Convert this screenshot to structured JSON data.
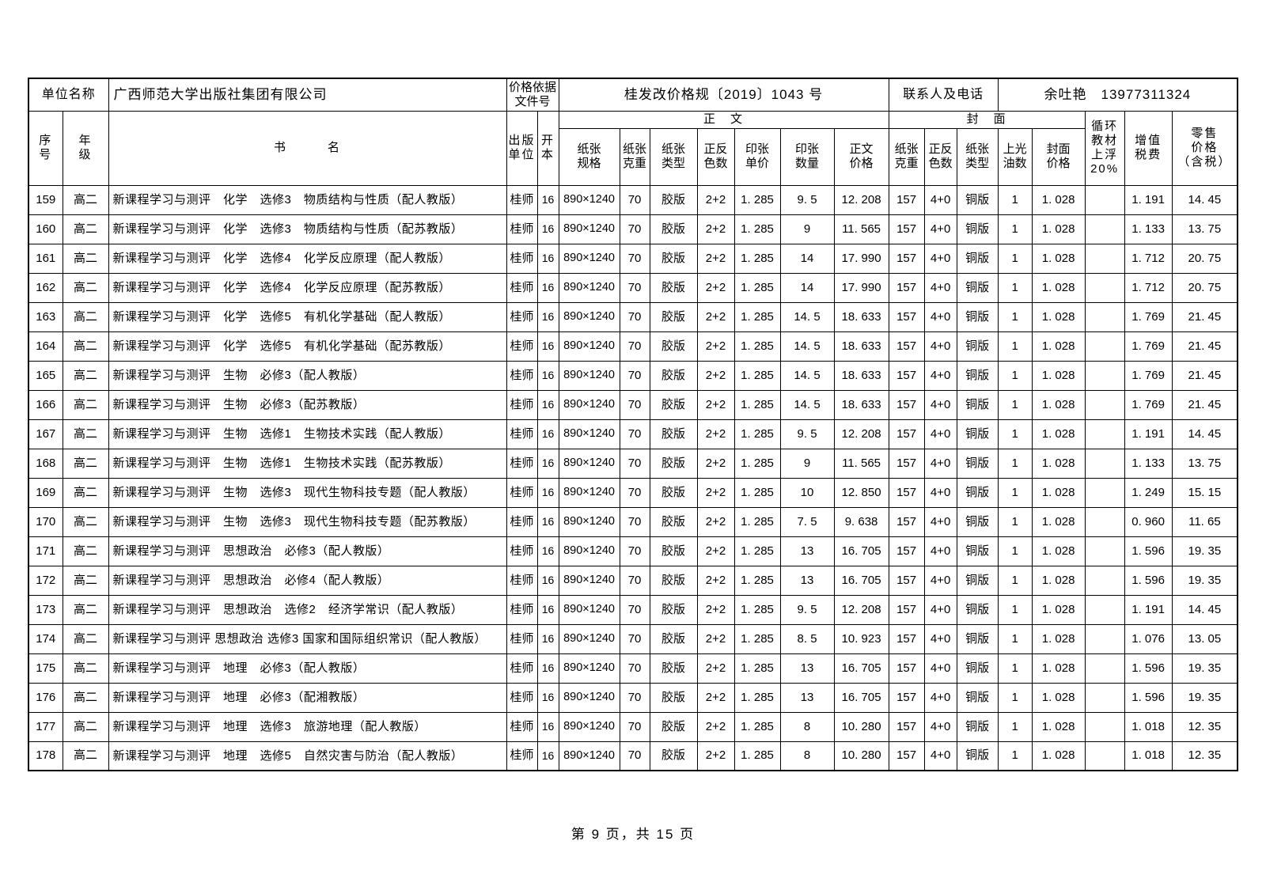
{
  "header": {
    "unit_label": "单位名称",
    "unit_name": "广西师范大学出版社集团有限公司",
    "price_doc_label": "价格依据\n文件号",
    "price_doc_value": "桂发改价格规〔2019〕1043 号",
    "contact_label": "联系人及电话",
    "contact_value": "余吐艳　13977311324"
  },
  "table": {
    "group_headers": {
      "body": "正　文",
      "cover": "封　面"
    },
    "columns": {
      "seq": "序\n号",
      "grade": "年\n级",
      "title": "书　　　名",
      "publisher": "出版\n单位",
      "format": "开\n本",
      "paper_spec": "纸张\n规格",
      "paper_weight": "纸张\n克重",
      "paper_type": "纸张\n类型",
      "colors": "正反\n色数",
      "sheet_unit_price": "印张\n单价",
      "sheet_count": "印张\n数量",
      "text_price": "正文\n价格",
      "cover_weight": "纸张\n克重",
      "cover_colors": "正反\n色数",
      "cover_type": "纸张\n类型",
      "varnish": "上光\n油数",
      "cover_price": "封面\n价格",
      "recycle": "循环\n教材\n上浮\n20%",
      "vat": "增值\n税费",
      "retail": "零售\n价格\n（含税）"
    },
    "rows": [
      {
        "seq": "159",
        "grade": "高二",
        "title": "新课程学习与测评　化学　选修3　物质结构与性质（配人教版）",
        "publisher": "桂师",
        "format": "16",
        "paper_spec": "890×1240",
        "paper_weight": "70",
        "paper_type": "胶版",
        "colors": "2+2",
        "sheet_unit_price": "1. 285",
        "sheet_count": "9. 5",
        "text_price": "12. 208",
        "cover_weight": "157",
        "cover_colors": "4+0",
        "cover_type": "铜版",
        "varnish": "1",
        "cover_price": "1. 028",
        "recycle": "",
        "vat": "1. 191",
        "retail": "14. 45"
      },
      {
        "seq": "160",
        "grade": "高二",
        "title": "新课程学习与测评　化学　选修3　物质结构与性质（配苏教版）",
        "publisher": "桂师",
        "format": "16",
        "paper_spec": "890×1240",
        "paper_weight": "70",
        "paper_type": "胶版",
        "colors": "2+2",
        "sheet_unit_price": "1. 285",
        "sheet_count": "9",
        "text_price": "11. 565",
        "cover_weight": "157",
        "cover_colors": "4+0",
        "cover_type": "铜版",
        "varnish": "1",
        "cover_price": "1. 028",
        "recycle": "",
        "vat": "1. 133",
        "retail": "13. 75"
      },
      {
        "seq": "161",
        "grade": "高二",
        "title": "新课程学习与测评　化学　选修4　化学反应原理（配人教版）",
        "publisher": "桂师",
        "format": "16",
        "paper_spec": "890×1240",
        "paper_weight": "70",
        "paper_type": "胶版",
        "colors": "2+2",
        "sheet_unit_price": "1. 285",
        "sheet_count": "14",
        "text_price": "17. 990",
        "cover_weight": "157",
        "cover_colors": "4+0",
        "cover_type": "铜版",
        "varnish": "1",
        "cover_price": "1. 028",
        "recycle": "",
        "vat": "1. 712",
        "retail": "20. 75"
      },
      {
        "seq": "162",
        "grade": "高二",
        "title": "新课程学习与测评　化学　选修4　化学反应原理（配苏教版）",
        "publisher": "桂师",
        "format": "16",
        "paper_spec": "890×1240",
        "paper_weight": "70",
        "paper_type": "胶版",
        "colors": "2+2",
        "sheet_unit_price": "1. 285",
        "sheet_count": "14",
        "text_price": "17. 990",
        "cover_weight": "157",
        "cover_colors": "4+0",
        "cover_type": "铜版",
        "varnish": "1",
        "cover_price": "1. 028",
        "recycle": "",
        "vat": "1. 712",
        "retail": "20. 75"
      },
      {
        "seq": "163",
        "grade": "高二",
        "title": "新课程学习与测评　化学　选修5　有机化学基础（配人教版）",
        "publisher": "桂师",
        "format": "16",
        "paper_spec": "890×1240",
        "paper_weight": "70",
        "paper_type": "胶版",
        "colors": "2+2",
        "sheet_unit_price": "1. 285",
        "sheet_count": "14. 5",
        "text_price": "18. 633",
        "cover_weight": "157",
        "cover_colors": "4+0",
        "cover_type": "铜版",
        "varnish": "1",
        "cover_price": "1. 028",
        "recycle": "",
        "vat": "1. 769",
        "retail": "21. 45"
      },
      {
        "seq": "164",
        "grade": "高二",
        "title": "新课程学习与测评　化学　选修5　有机化学基础（配苏教版）",
        "publisher": "桂师",
        "format": "16",
        "paper_spec": "890×1240",
        "paper_weight": "70",
        "paper_type": "胶版",
        "colors": "2+2",
        "sheet_unit_price": "1. 285",
        "sheet_count": "14. 5",
        "text_price": "18. 633",
        "cover_weight": "157",
        "cover_colors": "4+0",
        "cover_type": "铜版",
        "varnish": "1",
        "cover_price": "1. 028",
        "recycle": "",
        "vat": "1. 769",
        "retail": "21. 45"
      },
      {
        "seq": "165",
        "grade": "高二",
        "title": "新课程学习与测评　生物　必修3（配人教版）",
        "publisher": "桂师",
        "format": "16",
        "paper_spec": "890×1240",
        "paper_weight": "70",
        "paper_type": "胶版",
        "colors": "2+2",
        "sheet_unit_price": "1. 285",
        "sheet_count": "14. 5",
        "text_price": "18. 633",
        "cover_weight": "157",
        "cover_colors": "4+0",
        "cover_type": "铜版",
        "varnish": "1",
        "cover_price": "1. 028",
        "recycle": "",
        "vat": "1. 769",
        "retail": "21. 45"
      },
      {
        "seq": "166",
        "grade": "高二",
        "title": "新课程学习与测评　生物　必修3（配苏教版）",
        "publisher": "桂师",
        "format": "16",
        "paper_spec": "890×1240",
        "paper_weight": "70",
        "paper_type": "胶版",
        "colors": "2+2",
        "sheet_unit_price": "1. 285",
        "sheet_count": "14. 5",
        "text_price": "18. 633",
        "cover_weight": "157",
        "cover_colors": "4+0",
        "cover_type": "铜版",
        "varnish": "1",
        "cover_price": "1. 028",
        "recycle": "",
        "vat": "1. 769",
        "retail": "21. 45"
      },
      {
        "seq": "167",
        "grade": "高二",
        "title": "新课程学习与测评　生物　选修1　生物技术实践（配人教版）",
        "publisher": "桂师",
        "format": "16",
        "paper_spec": "890×1240",
        "paper_weight": "70",
        "paper_type": "胶版",
        "colors": "2+2",
        "sheet_unit_price": "1. 285",
        "sheet_count": "9. 5",
        "text_price": "12. 208",
        "cover_weight": "157",
        "cover_colors": "4+0",
        "cover_type": "铜版",
        "varnish": "1",
        "cover_price": "1. 028",
        "recycle": "",
        "vat": "1. 191",
        "retail": "14. 45"
      },
      {
        "seq": "168",
        "grade": "高二",
        "title": "新课程学习与测评　生物　选修1　生物技术实践（配苏教版）",
        "publisher": "桂师",
        "format": "16",
        "paper_spec": "890×1240",
        "paper_weight": "70",
        "paper_type": "胶版",
        "colors": "2+2",
        "sheet_unit_price": "1. 285",
        "sheet_count": "9",
        "text_price": "11. 565",
        "cover_weight": "157",
        "cover_colors": "4+0",
        "cover_type": "铜版",
        "varnish": "1",
        "cover_price": "1. 028",
        "recycle": "",
        "vat": "1. 133",
        "retail": "13. 75"
      },
      {
        "seq": "169",
        "grade": "高二",
        "title": "新课程学习与测评　生物　选修3　现代生物科技专题（配人教版）",
        "publisher": "桂师",
        "format": "16",
        "paper_spec": "890×1240",
        "paper_weight": "70",
        "paper_type": "胶版",
        "colors": "2+2",
        "sheet_unit_price": "1. 285",
        "sheet_count": "10",
        "text_price": "12. 850",
        "cover_weight": "157",
        "cover_colors": "4+0",
        "cover_type": "铜版",
        "varnish": "1",
        "cover_price": "1. 028",
        "recycle": "",
        "vat": "1. 249",
        "retail": "15. 15"
      },
      {
        "seq": "170",
        "grade": "高二",
        "title": "新课程学习与测评　生物　选修3　现代生物科技专题（配苏教版）",
        "publisher": "桂师",
        "format": "16",
        "paper_spec": "890×1240",
        "paper_weight": "70",
        "paper_type": "胶版",
        "colors": "2+2",
        "sheet_unit_price": "1. 285",
        "sheet_count": "7. 5",
        "text_price": "9. 638",
        "cover_weight": "157",
        "cover_colors": "4+0",
        "cover_type": "铜版",
        "varnish": "1",
        "cover_price": "1. 028",
        "recycle": "",
        "vat": "0. 960",
        "retail": "11. 65"
      },
      {
        "seq": "171",
        "grade": "高二",
        "title": "新课程学习与测评　思想政治　必修3（配人教版）",
        "publisher": "桂师",
        "format": "16",
        "paper_spec": "890×1240",
        "paper_weight": "70",
        "paper_type": "胶版",
        "colors": "2+2",
        "sheet_unit_price": "1. 285",
        "sheet_count": "13",
        "text_price": "16. 705",
        "cover_weight": "157",
        "cover_colors": "4+0",
        "cover_type": "铜版",
        "varnish": "1",
        "cover_price": "1. 028",
        "recycle": "",
        "vat": "1. 596",
        "retail": "19. 35"
      },
      {
        "seq": "172",
        "grade": "高二",
        "title": "新课程学习与测评　思想政治　必修4（配人教版）",
        "publisher": "桂师",
        "format": "16",
        "paper_spec": "890×1240",
        "paper_weight": "70",
        "paper_type": "胶版",
        "colors": "2+2",
        "sheet_unit_price": "1. 285",
        "sheet_count": "13",
        "text_price": "16. 705",
        "cover_weight": "157",
        "cover_colors": "4+0",
        "cover_type": "铜版",
        "varnish": "1",
        "cover_price": "1. 028",
        "recycle": "",
        "vat": "1. 596",
        "retail": "19. 35"
      },
      {
        "seq": "173",
        "grade": "高二",
        "title": "新课程学习与测评　思想政治　选修2　经济学常识（配人教版）",
        "publisher": "桂师",
        "format": "16",
        "paper_spec": "890×1240",
        "paper_weight": "70",
        "paper_type": "胶版",
        "colors": "2+2",
        "sheet_unit_price": "1. 285",
        "sheet_count": "9. 5",
        "text_price": "12. 208",
        "cover_weight": "157",
        "cover_colors": "4+0",
        "cover_type": "铜版",
        "varnish": "1",
        "cover_price": "1. 028",
        "recycle": "",
        "vat": "1. 191",
        "retail": "14. 45"
      },
      {
        "seq": "174",
        "grade": "高二",
        "title": "新课程学习与测评 思想政治 选修3 国家和国际组织常识（配人教版）",
        "publisher": "桂师",
        "format": "16",
        "paper_spec": "890×1240",
        "paper_weight": "70",
        "paper_type": "胶版",
        "colors": "2+2",
        "sheet_unit_price": "1. 285",
        "sheet_count": "8. 5",
        "text_price": "10. 923",
        "cover_weight": "157",
        "cover_colors": "4+0",
        "cover_type": "铜版",
        "varnish": "1",
        "cover_price": "1. 028",
        "recycle": "",
        "vat": "1. 076",
        "retail": "13. 05"
      },
      {
        "seq": "175",
        "grade": "高二",
        "title": "新课程学习与测评　地理　必修3（配人教版）",
        "publisher": "桂师",
        "format": "16",
        "paper_spec": "890×1240",
        "paper_weight": "70",
        "paper_type": "胶版",
        "colors": "2+2",
        "sheet_unit_price": "1. 285",
        "sheet_count": "13",
        "text_price": "16. 705",
        "cover_weight": "157",
        "cover_colors": "4+0",
        "cover_type": "铜版",
        "varnish": "1",
        "cover_price": "1. 028",
        "recycle": "",
        "vat": "1. 596",
        "retail": "19. 35"
      },
      {
        "seq": "176",
        "grade": "高二",
        "title": "新课程学习与测评　地理　必修3（配湘教版）",
        "publisher": "桂师",
        "format": "16",
        "paper_spec": "890×1240",
        "paper_weight": "70",
        "paper_type": "胶版",
        "colors": "2+2",
        "sheet_unit_price": "1. 285",
        "sheet_count": "13",
        "text_price": "16. 705",
        "cover_weight": "157",
        "cover_colors": "4+0",
        "cover_type": "铜版",
        "varnish": "1",
        "cover_price": "1. 028",
        "recycle": "",
        "vat": "1. 596",
        "retail": "19. 35"
      },
      {
        "seq": "177",
        "grade": "高二",
        "title": "新课程学习与测评　地理　选修3　旅游地理（配人教版）",
        "publisher": "桂师",
        "format": "16",
        "paper_spec": "890×1240",
        "paper_weight": "70",
        "paper_type": "胶版",
        "colors": "2+2",
        "sheet_unit_price": "1. 285",
        "sheet_count": "8",
        "text_price": "10. 280",
        "cover_weight": "157",
        "cover_colors": "4+0",
        "cover_type": "铜版",
        "varnish": "1",
        "cover_price": "1. 028",
        "recycle": "",
        "vat": "1. 018",
        "retail": "12. 35"
      },
      {
        "seq": "178",
        "grade": "高二",
        "title": "新课程学习与测评　地理　选修5　自然灾害与防治（配人教版）",
        "publisher": "桂师",
        "format": "16",
        "paper_spec": "890×1240",
        "paper_weight": "70",
        "paper_type": "胶版",
        "colors": "2+2",
        "sheet_unit_price": "1. 285",
        "sheet_count": "8",
        "text_price": "10. 280",
        "cover_weight": "157",
        "cover_colors": "4+0",
        "cover_type": "铜版",
        "varnish": "1",
        "cover_price": "1. 028",
        "recycle": "",
        "vat": "1. 018",
        "retail": "12. 35"
      }
    ]
  },
  "footer": {
    "page_info": "第 9 页，共 15 页"
  }
}
